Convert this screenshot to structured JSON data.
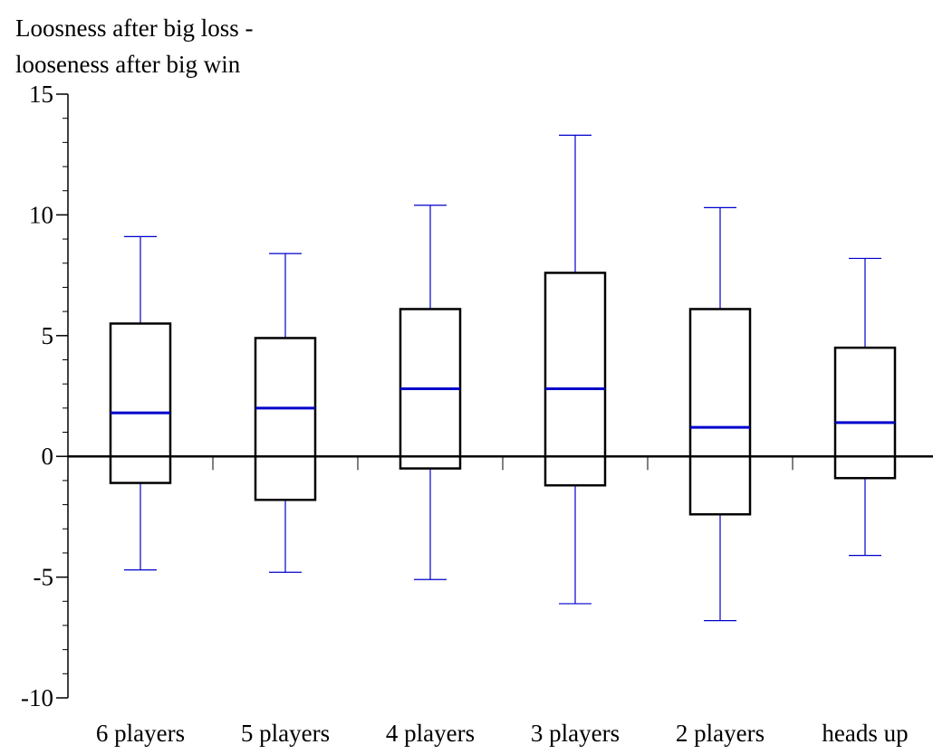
{
  "chart_data": {
    "type": "box",
    "ylabel_lines": [
      "Loosness after big loss -",
      "looseness after big win"
    ],
    "ylim": [
      -10,
      15
    ],
    "yticks": [
      15,
      10,
      5,
      0,
      -5,
      -10
    ],
    "ytick_labels": [
      "15",
      "10",
      "5",
      "0",
      "-5",
      "-10"
    ],
    "categories": [
      "6 players",
      "5 players",
      "4 players",
      "3 players",
      "2 players",
      "heads up"
    ],
    "boxes": [
      {
        "category": "6 players",
        "whisker_low": -4.7,
        "q1": -1.1,
        "median": 1.8,
        "q3": 5.5,
        "whisker_high": 9.1
      },
      {
        "category": "5 players",
        "whisker_low": -4.8,
        "q1": -1.8,
        "median": 2.0,
        "q3": 4.9,
        "whisker_high": 8.4
      },
      {
        "category": "4 players",
        "whisker_low": -5.1,
        "q1": -0.5,
        "median": 2.8,
        "q3": 6.1,
        "whisker_high": 10.4
      },
      {
        "category": "3 players",
        "whisker_low": -6.1,
        "q1": -1.2,
        "median": 2.8,
        "q3": 7.6,
        "whisker_high": 13.3
      },
      {
        "category": "2 players",
        "whisker_low": -6.8,
        "q1": -2.4,
        "median": 1.2,
        "q3": 6.1,
        "whisker_high": 10.3
      },
      {
        "category": "heads up",
        "whisker_low": -4.1,
        "q1": -0.9,
        "median": 1.4,
        "q3": 4.5,
        "whisker_high": 8.2
      }
    ],
    "colors": {
      "box": "#000000",
      "median": "#0000cc",
      "whisker": "#0000cc",
      "axis": "#000000"
    },
    "grid": false,
    "legend": "none"
  }
}
